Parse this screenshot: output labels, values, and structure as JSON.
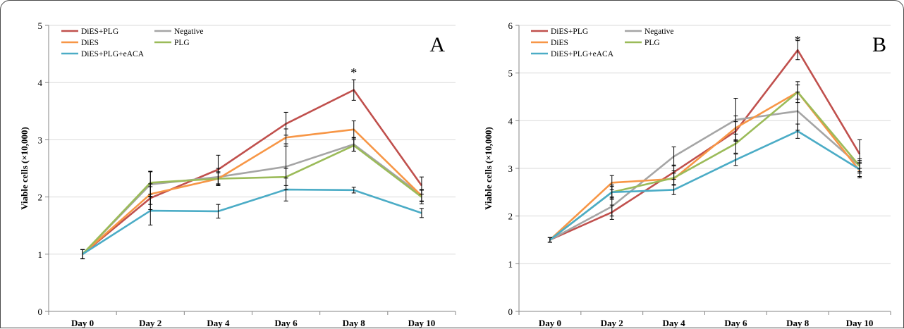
{
  "chart_data": [
    {
      "type": "line",
      "panel_letter": "A",
      "ylabel": "Viable cells (×10,000)",
      "xlabel": "",
      "categories": [
        "Day 0",
        "Day 2",
        "Day 4",
        "Day 6",
        "Day 8",
        "Day 10"
      ],
      "ylim": [
        0,
        5
      ],
      "yticks": [
        "0",
        "1",
        "2",
        "3",
        "4",
        "5"
      ],
      "legend_position": "top-left",
      "grid": "horizontal",
      "annotations": [
        {
          "text": "*",
          "category": "Day 8",
          "y": 4.2
        }
      ],
      "series": [
        {
          "name": "DiES+PLG",
          "color": "#c0504d",
          "values": [
            1.0,
            1.98,
            2.48,
            3.28,
            3.87,
            2.2
          ],
          "errors": [
            0.08,
            0.2,
            0.25,
            0.2,
            0.18,
            0.15
          ]
        },
        {
          "name": "Negative",
          "color": "#a5a5a5",
          "values": [
            1.0,
            2.22,
            2.35,
            2.53,
            2.92,
            2.03
          ],
          "errors": [
            0.08,
            0.22,
            0.15,
            0.4,
            0.12,
            0.1
          ]
        },
        {
          "name": "DiES",
          "color": "#f79646",
          "values": [
            1.0,
            2.05,
            2.32,
            3.04,
            3.18,
            2.02
          ],
          "errors": [
            0.08,
            0.18,
            0.1,
            0.15,
            0.15,
            0.1
          ]
        },
        {
          "name": "PLG",
          "color": "#9bbb59",
          "values": [
            1.0,
            2.25,
            2.32,
            2.35,
            2.9,
            2.0
          ],
          "errors": [
            0.08,
            0.2,
            0.12,
            0.15,
            0.1,
            0.12
          ]
        },
        {
          "name": "DiES+PLG+eACA",
          "color": "#4bacc6",
          "values": [
            1.0,
            1.76,
            1.75,
            2.13,
            2.12,
            1.72
          ],
          "errors": [
            0.08,
            0.25,
            0.12,
            0.2,
            0.05,
            0.08
          ]
        }
      ]
    },
    {
      "type": "line",
      "panel_letter": "B",
      "ylabel": "Viable cells (×10,000)",
      "xlabel": "",
      "categories": [
        "Day 0",
        "Day 2",
        "Day 4",
        "Day 6",
        "Day 8",
        "Day 10"
      ],
      "ylim": [
        0,
        6
      ],
      "yticks": [
        "0",
        "1",
        "2",
        "3",
        "4",
        "5",
        "6"
      ],
      "legend_position": "top-left",
      "grid": "horizontal",
      "annotations": [
        {
          "text": "*",
          "category": "Day 8",
          "y": 5.72
        }
      ],
      "series": [
        {
          "name": "DiES+PLG",
          "color": "#c0504d",
          "values": [
            1.5,
            2.08,
            2.92,
            3.78,
            5.48,
            3.3
          ],
          "errors": [
            0.05,
            0.15,
            0.15,
            0.2,
            0.2,
            0.3
          ]
        },
        {
          "name": "Negative",
          "color": "#a5a5a5",
          "values": [
            1.5,
            2.2,
            3.25,
            4.02,
            4.2,
            3.05
          ],
          "errors": [
            0.05,
            0.2,
            0.2,
            0.45,
            0.4,
            0.15
          ]
        },
        {
          "name": "DiES",
          "color": "#f79646",
          "values": [
            1.5,
            2.7,
            2.78,
            3.85,
            4.6,
            2.95
          ],
          "errors": [
            0.05,
            0.15,
            0.12,
            0.25,
            0.22,
            0.15
          ]
        },
        {
          "name": "PLG",
          "color": "#9bbb59",
          "values": [
            1.5,
            2.5,
            2.8,
            3.52,
            4.6,
            3.05
          ],
          "errors": [
            0.05,
            0.15,
            0.15,
            0.2,
            0.15,
            0.12
          ]
        },
        {
          "name": "DiES+PLG+eACA",
          "color": "#4bacc6",
          "values": [
            1.5,
            2.5,
            2.55,
            3.18,
            3.78,
            2.98
          ],
          "errors": [
            0.05,
            0.12,
            0.1,
            0.12,
            0.15,
            0.15
          ]
        }
      ]
    }
  ]
}
